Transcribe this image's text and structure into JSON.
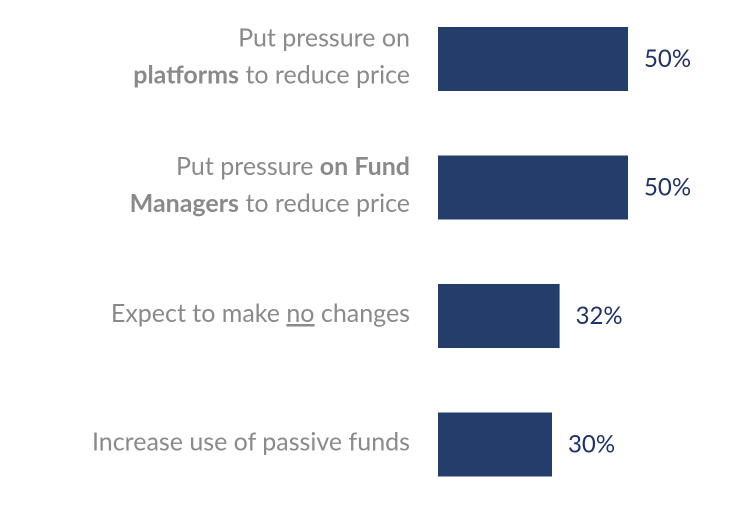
{
  "chart_data": {
    "type": "bar",
    "orientation": "horizontal",
    "color": "#253d6b",
    "categories": [
      [
        [
          {
            "text": "Put pressure on"
          }
        ],
        [
          {
            "text": "platforms",
            "bold": true
          },
          {
            "text": " to reduce price"
          }
        ]
      ],
      [
        [
          {
            "text": "Put pressure "
          },
          {
            "text": "on Fund",
            "bold": true
          }
        ],
        [
          {
            "text": "Managers",
            "bold": true
          },
          {
            "text": " to reduce price"
          }
        ]
      ],
      [
        [
          {
            "text": "Expect to make "
          },
          {
            "text": "no",
            "underline": true
          },
          {
            "text": " changes"
          }
        ]
      ],
      [
        [
          {
            "text": "Increase use of passive funds"
          }
        ]
      ]
    ],
    "values": [
      50,
      50,
      32,
      30
    ],
    "value_labels": [
      "50%",
      "50%",
      "32%",
      "30%"
    ]
  }
}
